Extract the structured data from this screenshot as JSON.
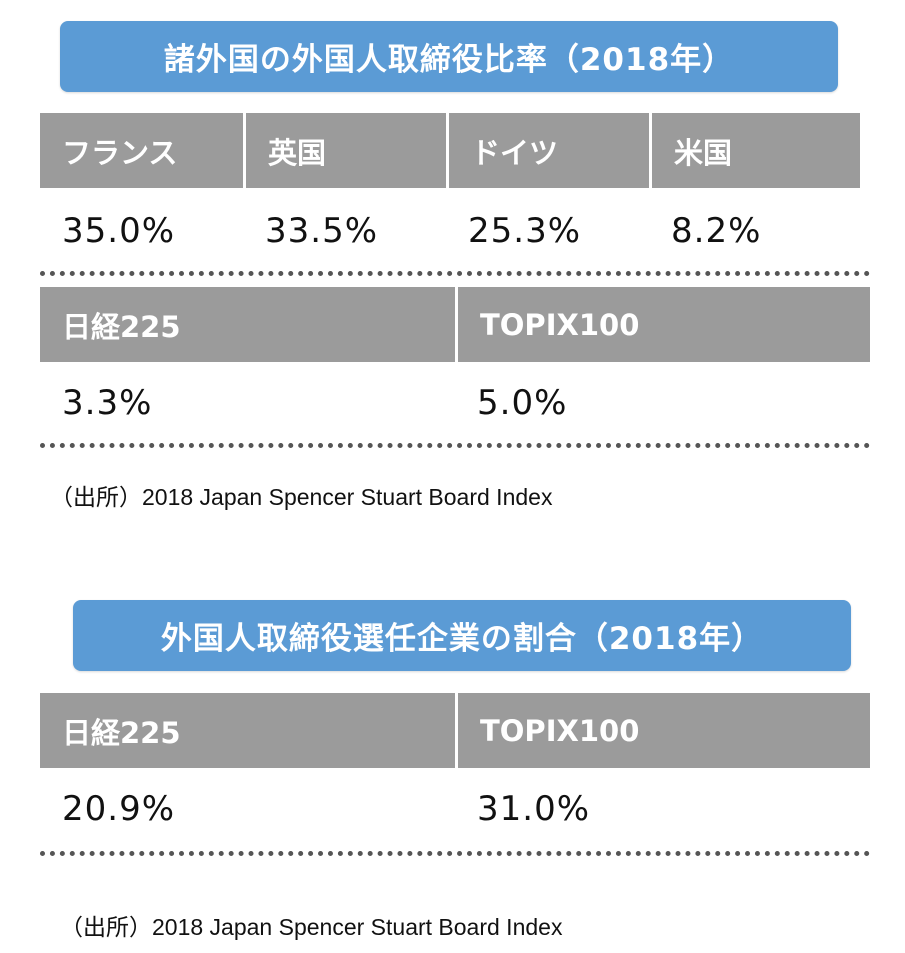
{
  "chart_data": [
    {
      "type": "table",
      "title": "諸外国の外国人取締役比率（2018年）",
      "groups": [
        {
          "headers": [
            "フランス",
            "英国",
            "ドイツ",
            "米国"
          ],
          "values": [
            "35.0%",
            "33.5%",
            "25.3%",
            "8.2%"
          ]
        },
        {
          "headers": [
            "日経225",
            "TOPIX100"
          ],
          "values": [
            "3.3%",
            "5.0%"
          ]
        }
      ],
      "source": "（出所）2018 Japan Spencer Stuart Board Index"
    },
    {
      "type": "table",
      "title": "外国人取締役選任企業の割合（2018年）",
      "groups": [
        {
          "headers": [
            "日経225",
            "TOPIX100"
          ],
          "values": [
            "20.9%",
            "31.0%"
          ]
        }
      ],
      "source": "（出所）2018 Japan Spencer Stuart Board Index"
    }
  ],
  "colors": {
    "banner": "#5b9bd5",
    "header_bg": "#9b9b9b",
    "divider": "#555555"
  }
}
